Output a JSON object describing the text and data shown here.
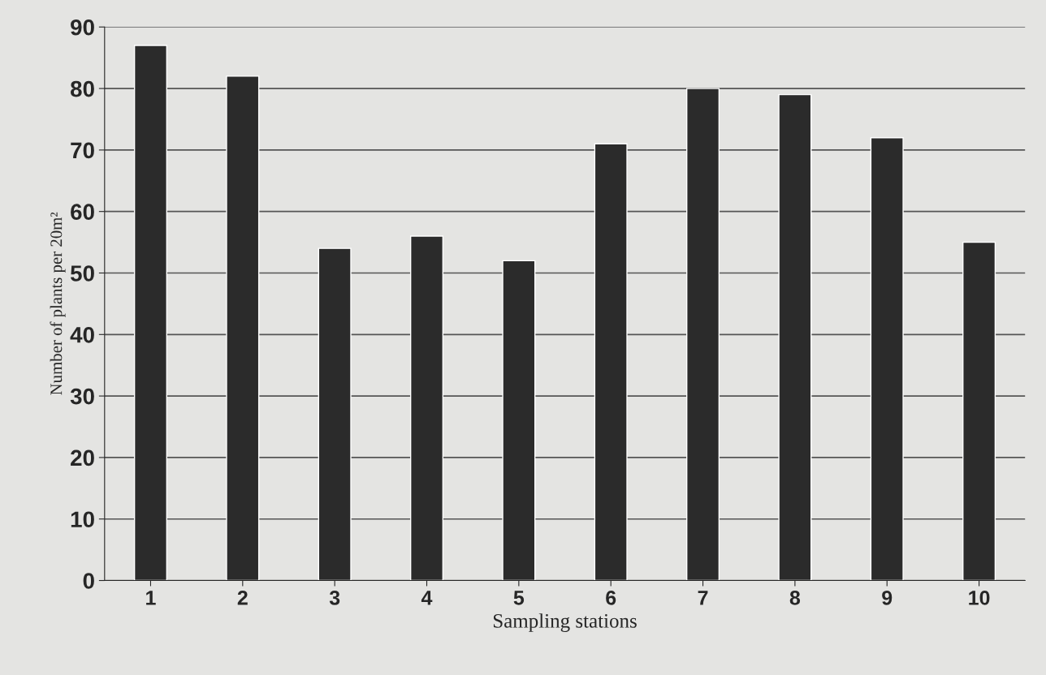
{
  "chart_data": {
    "type": "bar",
    "categories": [
      "1",
      "2",
      "3",
      "4",
      "5",
      "6",
      "7",
      "8",
      "9",
      "10"
    ],
    "values": [
      87,
      82,
      54,
      56,
      52,
      71,
      80,
      79,
      72,
      55
    ],
    "color": "#2b2b2b",
    "xlabel": "Sampling stations",
    "ylabel": "Number of plants per 20m²",
    "ylim": [
      0,
      90
    ],
    "yticks": [
      0,
      10,
      20,
      30,
      40,
      50,
      60,
      70,
      80,
      90
    ],
    "grid": "y"
  }
}
